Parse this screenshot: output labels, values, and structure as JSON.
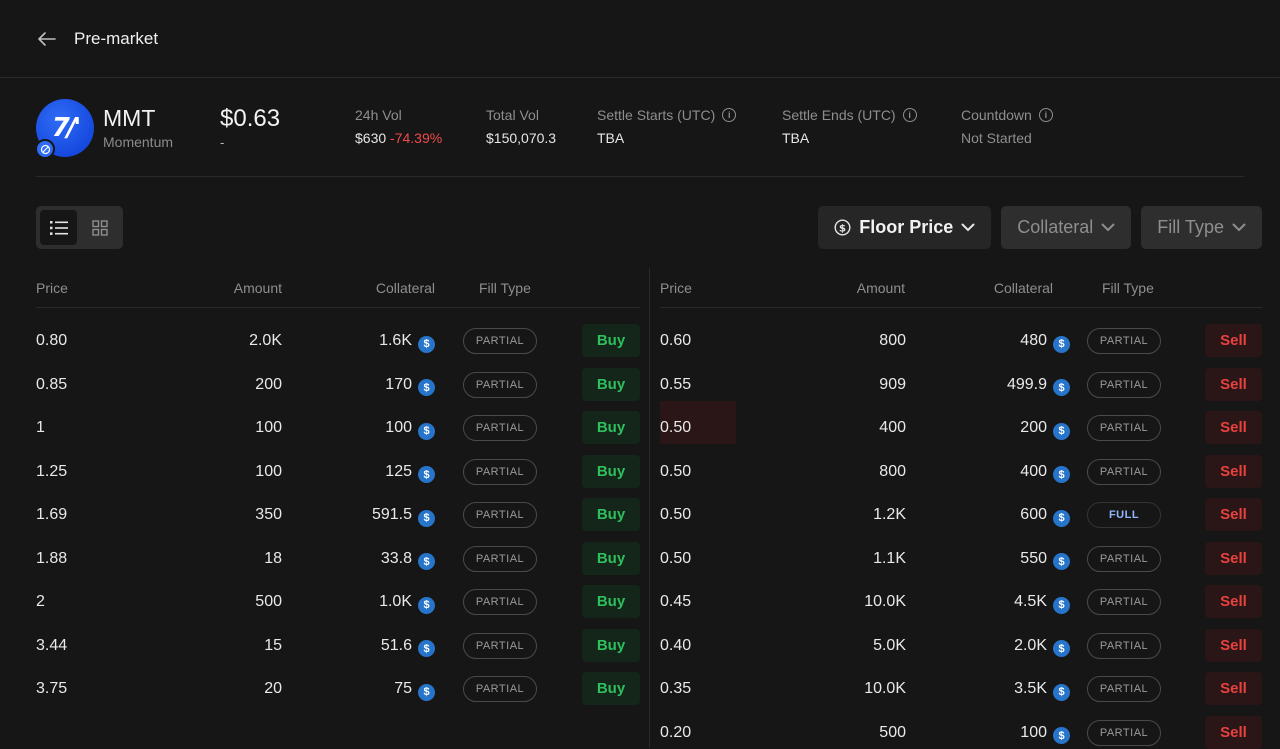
{
  "header": {
    "title": "Pre-market"
  },
  "token": {
    "symbol": "MMT",
    "name": "Momentum",
    "price": "$0.63",
    "price_change": "-",
    "colors": {
      "logo": "#1447e6"
    }
  },
  "stats": [
    {
      "label": "24h Vol",
      "value": "$630",
      "change": "-74.39%",
      "info": false
    },
    {
      "label": "Total Vol",
      "value": "$150,070.3",
      "info": false
    },
    {
      "label": "Settle Starts (UTC)",
      "value": "TBA",
      "info": true
    },
    {
      "label": "Settle Ends (UTC)",
      "value": "TBA",
      "info": true
    },
    {
      "label": "Countdown",
      "value": "Not Started",
      "info": true
    }
  ],
  "filters": {
    "floor_price": "Floor Price",
    "collateral": "Collateral",
    "fill_type": "Fill Type"
  },
  "columns": {
    "price": "Price",
    "amount": "Amount",
    "collateral": "Collateral",
    "fill_type": "Fill Type"
  },
  "buy_orders": [
    {
      "price": "0.80",
      "amount": "2.0K",
      "collateral": "1.6K",
      "fill": "PARTIAL",
      "action": "Buy"
    },
    {
      "price": "0.85",
      "amount": "200",
      "collateral": "170",
      "fill": "PARTIAL",
      "action": "Buy"
    },
    {
      "price": "1",
      "amount": "100",
      "collateral": "100",
      "fill": "PARTIAL",
      "action": "Buy"
    },
    {
      "price": "1.25",
      "amount": "100",
      "collateral": "125",
      "fill": "PARTIAL",
      "action": "Buy"
    },
    {
      "price": "1.69",
      "amount": "350",
      "collateral": "591.5",
      "fill": "PARTIAL",
      "action": "Buy"
    },
    {
      "price": "1.88",
      "amount": "18",
      "collateral": "33.8",
      "fill": "PARTIAL",
      "action": "Buy"
    },
    {
      "price": "2",
      "amount": "500",
      "collateral": "1.0K",
      "fill": "PARTIAL",
      "action": "Buy"
    },
    {
      "price": "3.44",
      "amount": "15",
      "collateral": "51.6",
      "fill": "PARTIAL",
      "action": "Buy"
    },
    {
      "price": "3.75",
      "amount": "20",
      "collateral": "75",
      "fill": "PARTIAL",
      "action": "Buy"
    }
  ],
  "sell_orders": [
    {
      "price": "0.60",
      "amount": "800",
      "collateral": "480",
      "fill": "PARTIAL",
      "action": "Sell"
    },
    {
      "price": "0.55",
      "amount": "909",
      "collateral": "499.9",
      "fill": "PARTIAL",
      "action": "Sell"
    },
    {
      "price": "0.50",
      "amount": "400",
      "collateral": "200",
      "fill": "PARTIAL",
      "action": "Sell"
    },
    {
      "price": "0.50",
      "amount": "800",
      "collateral": "400",
      "fill": "PARTIAL",
      "action": "Sell"
    },
    {
      "price": "0.50",
      "amount": "1.2K",
      "collateral": "600",
      "fill": "FULL",
      "action": "Sell"
    },
    {
      "price": "0.50",
      "amount": "1.1K",
      "collateral": "550",
      "fill": "PARTIAL",
      "action": "Sell"
    },
    {
      "price": "0.45",
      "amount": "10.0K",
      "collateral": "4.5K",
      "fill": "PARTIAL",
      "action": "Sell"
    },
    {
      "price": "0.40",
      "amount": "5.0K",
      "collateral": "2.0K",
      "fill": "PARTIAL",
      "action": "Sell"
    },
    {
      "price": "0.35",
      "amount": "10.0K",
      "collateral": "3.5K",
      "fill": "PARTIAL",
      "action": "Sell"
    },
    {
      "price": "0.20",
      "amount": "500",
      "collateral": "100",
      "fill": "PARTIAL",
      "action": "Sell"
    }
  ],
  "icons": {
    "back": "arrow-left-icon",
    "list": "list-icon",
    "grid": "grid-icon",
    "coin": "dollar-circle-icon",
    "chevron": "chevron-down-icon",
    "collateral_token": "usdc-icon"
  }
}
